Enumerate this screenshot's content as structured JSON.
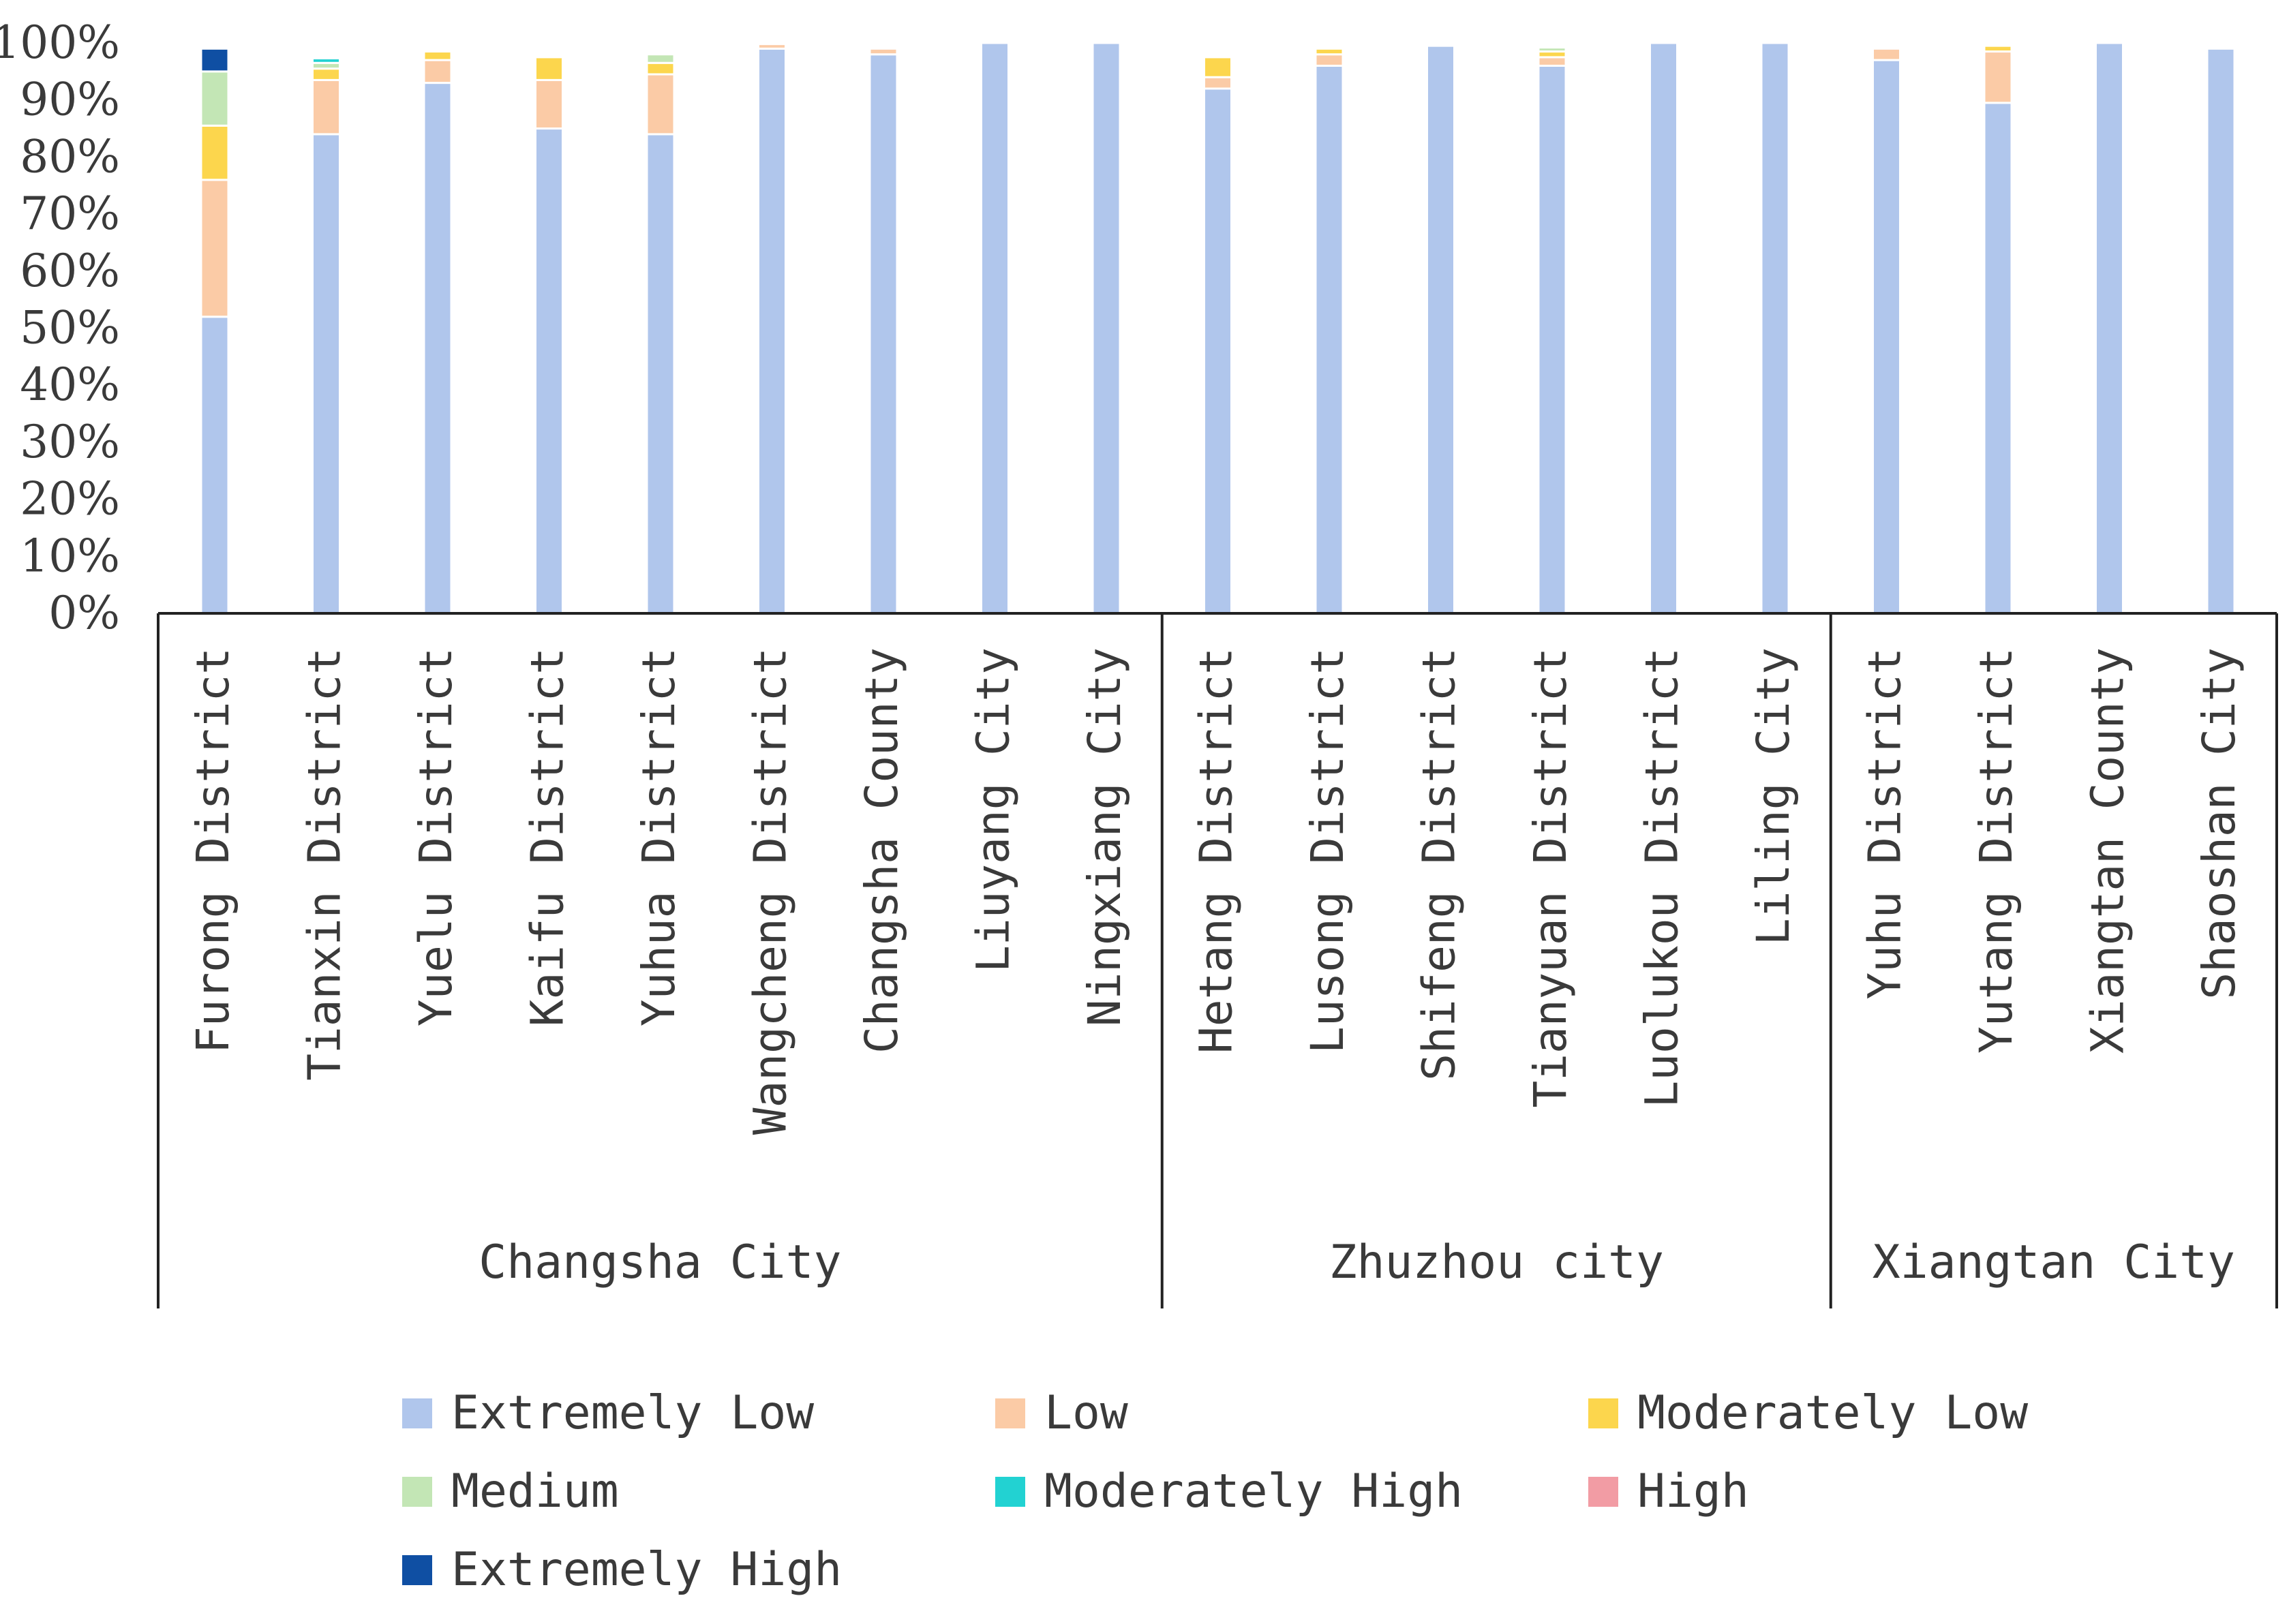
{
  "chart_data": {
    "type": "bar",
    "stacked": true,
    "title": "",
    "xlabel": "",
    "ylabel": "",
    "ylim": [
      0,
      100
    ],
    "yticks": [
      "0%",
      "10%",
      "20%",
      "30%",
      "40%",
      "50%",
      "60%",
      "70%",
      "80%",
      "90%",
      "100%"
    ],
    "categories": [
      "Furong District",
      "Tianxin District",
      "Yuelu District",
      "Kaifu District",
      "Yuhua District",
      "Wangcheng District",
      "Changsha County",
      "Liuyang City",
      "Ningxiang City",
      "Hetang District",
      "Lusong District",
      "Shifeng District",
      "Tianyuan District",
      "Luolukou District",
      "Liling City",
      "Yuhu District",
      "Yutang District",
      "Xiangtan County",
      "Shaoshan City"
    ],
    "groups": [
      {
        "label": "Changsha City",
        "start": 0,
        "end": 8
      },
      {
        "label": "Zhuzhou city",
        "start": 9,
        "end": 14
      },
      {
        "label": "Xiangtan City",
        "start": 15,
        "end": 18
      }
    ],
    "series": [
      {
        "name": "Extremely Low",
        "color": "#B0C6EC",
        "values": [
          52,
          84,
          93,
          85,
          84,
          99,
          98,
          100,
          100,
          92,
          96,
          99.5,
          96,
          100,
          100,
          97,
          89.5,
          100,
          99
        ]
      },
      {
        "name": "Low",
        "color": "#FBCBA6",
        "values": [
          24,
          9.5,
          4,
          8.5,
          10.5,
          0.8,
          1,
          0,
          0,
          2,
          2,
          0,
          1.5,
          0,
          0,
          2,
          9,
          0,
          0
        ]
      },
      {
        "name": "Moderately Low",
        "color": "#FCD64D",
        "values": [
          9.5,
          2,
          1.5,
          4,
          2,
          0,
          0,
          0,
          0,
          3.5,
          1,
          0,
          1,
          0,
          0,
          0,
          1,
          0,
          0
        ]
      },
      {
        "name": "Medium",
        "color": "#C3E6B5",
        "values": [
          9.5,
          1,
          0,
          0,
          1.5,
          0,
          0,
          0,
          0,
          0,
          0,
          0,
          0.7,
          0,
          0,
          0,
          0,
          0,
          0
        ]
      },
      {
        "name": "Moderately High",
        "color": "#22D2D2",
        "values": [
          0,
          0.8,
          0,
          0,
          0,
          0,
          0,
          0,
          0,
          0,
          0,
          0,
          0,
          0,
          0,
          0,
          0,
          0,
          0
        ]
      },
      {
        "name": "High",
        "color": "#F29CA4",
        "values": [
          0,
          0,
          0,
          0,
          0,
          0,
          0,
          0,
          0,
          0,
          0,
          0,
          0,
          0,
          0,
          0,
          0,
          0,
          0
        ]
      },
      {
        "name": "Extremely High",
        "color": "#0F4FA3",
        "values": [
          4,
          0,
          0,
          0,
          0,
          0,
          0,
          0,
          0,
          0,
          0,
          0,
          0,
          0,
          0,
          0,
          0,
          0,
          0
        ]
      }
    ],
    "legend": {
      "position": "bottom",
      "entries": [
        "Extremely Low",
        " Low",
        "Moderately Low",
        "Medium",
        "Moderately High",
        "High",
        "Extremely High"
      ]
    }
  }
}
